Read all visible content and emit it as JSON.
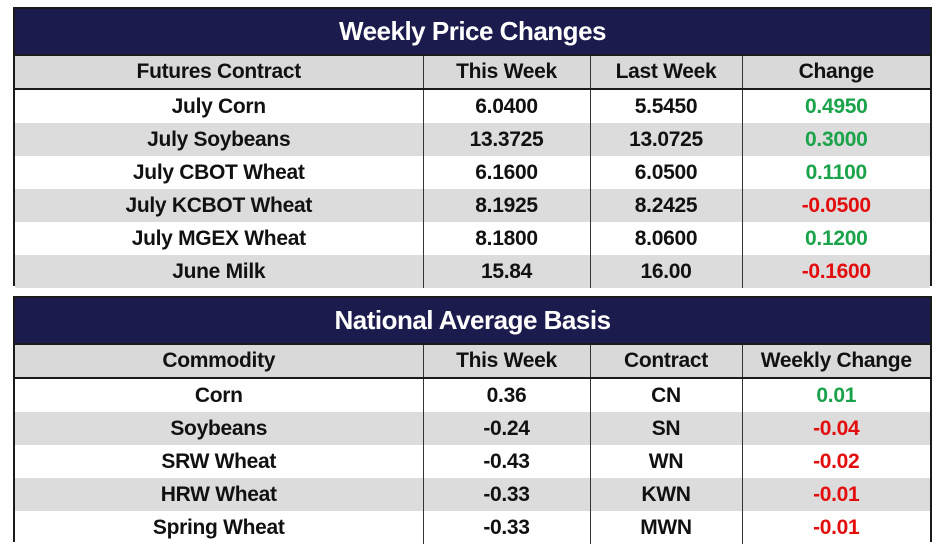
{
  "price_table": {
    "title": "Weekly Price Changes",
    "headers": [
      "Futures Contract",
      "This Week",
      "Last Week",
      "Change"
    ],
    "rows": [
      {
        "name": "July Corn",
        "this_week": "6.0400",
        "last_week": "5.5450",
        "change": "0.4950",
        "dir": "pos"
      },
      {
        "name": "July Soybeans",
        "this_week": "13.3725",
        "last_week": "13.0725",
        "change": "0.3000",
        "dir": "pos"
      },
      {
        "name": "July CBOT Wheat",
        "this_week": "6.1600",
        "last_week": "6.0500",
        "change": "0.1100",
        "dir": "pos"
      },
      {
        "name": "July KCBOT Wheat",
        "this_week": "8.1925",
        "last_week": "8.2425",
        "change": "-0.0500",
        "dir": "neg"
      },
      {
        "name": "July MGEX Wheat",
        "this_week": "8.1800",
        "last_week": "8.0600",
        "change": "0.1200",
        "dir": "pos"
      },
      {
        "name": "June Milk",
        "this_week": "15.84",
        "last_week": "16.00",
        "change": "-0.1600",
        "dir": "neg"
      }
    ]
  },
  "basis_table": {
    "title": "National Average Basis",
    "headers": [
      "Commodity",
      "This Week",
      "Contract",
      "Weekly Change"
    ],
    "rows": [
      {
        "name": "Corn",
        "this_week": "0.36",
        "contract": "CN",
        "change": "0.01",
        "dir": "pos"
      },
      {
        "name": "Soybeans",
        "this_week": "-0.24",
        "contract": "SN",
        "change": "-0.04",
        "dir": "neg"
      },
      {
        "name": "SRW Wheat",
        "this_week": "-0.43",
        "contract": "WN",
        "change": "-0.02",
        "dir": "neg"
      },
      {
        "name": "HRW Wheat",
        "this_week": "-0.33",
        "contract": "KWN",
        "change": "-0.01",
        "dir": "neg"
      },
      {
        "name": "Spring Wheat",
        "this_week": "-0.33",
        "contract": "MWN",
        "change": "-0.01",
        "dir": "neg"
      }
    ]
  },
  "colors": {
    "header_bg": "#1b1b4d",
    "positive": "#1aa34a",
    "negative": "#e30d0d",
    "stripe": "#dcdcdc"
  }
}
